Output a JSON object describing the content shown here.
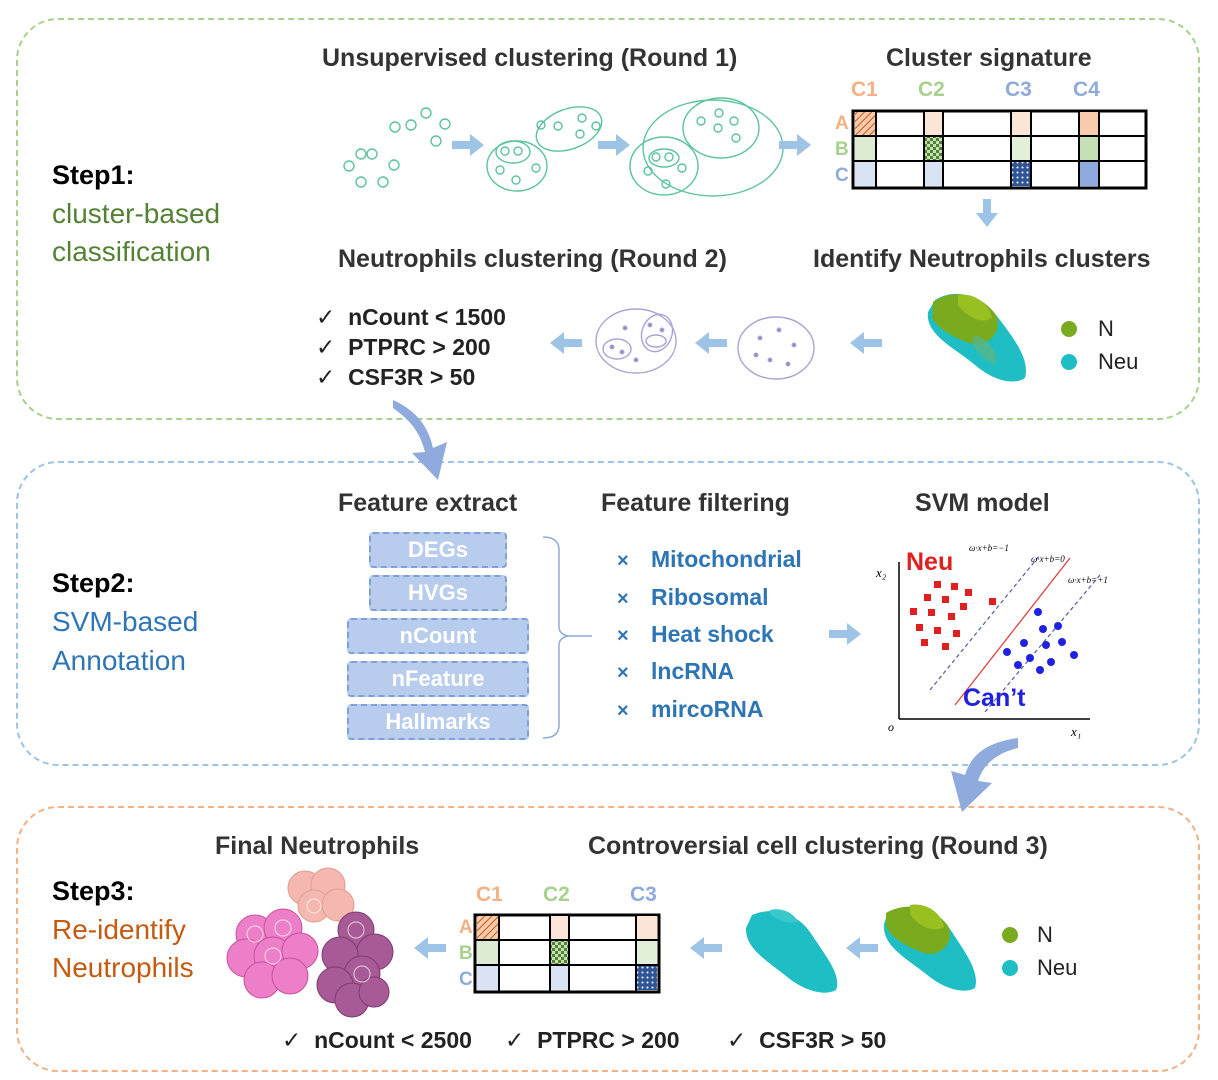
{
  "step1": {
    "label": "Step1:",
    "subtitle_line1": "cluster-based",
    "subtitle_line2": "classification",
    "color": "#548235",
    "border_color": "#a9d18e",
    "titles": {
      "unsupervised": "Unsupervised clustering (Round 1)",
      "signature": "Cluster signature",
      "neutrophils_round2": "Neutrophils clustering (Round 2)",
      "identify": "Identify Neutrophils clusters"
    },
    "matrix": {
      "columns": [
        "C1",
        "C2",
        "C3",
        "C4"
      ],
      "rows": [
        "A",
        "B",
        "C"
      ]
    },
    "criteria": [
      "nCount < 1500",
      "PTPRC > 200",
      "CSF3R > 50"
    ],
    "legend": [
      {
        "label": "N",
        "color": "#7aab1f"
      },
      {
        "label": "Neu",
        "color": "#1fbdc4"
      }
    ]
  },
  "step2": {
    "label": "Step2:",
    "subtitle_line1": "SVM-based",
    "subtitle_line2": "Annotation",
    "color": "#2e75b6",
    "border_color": "#9dc3e6",
    "titles": {
      "feature_extract": "Feature extract",
      "feature_filtering": "Feature filtering",
      "svm": "SVM model"
    },
    "features": [
      "DEGs",
      "HVGs",
      "nCount",
      "nFeature",
      "Hallmarks"
    ],
    "filters": [
      "Mitochondrial",
      "Ribosomal",
      "Heat shock",
      "lncRNA",
      "mircoRNA"
    ],
    "filter_mark": "×",
    "svm_plot": {
      "class_a": "Neu",
      "class_b": "Can’t",
      "x_axis": "x₁",
      "y_axis": "x₂",
      "origin": "o",
      "line_labels": [
        "ω·x+b=−1",
        "ω·x+b=0",
        "ω·x+b=+1"
      ]
    }
  },
  "step3": {
    "label": "Step3:",
    "subtitle_line1": "Re-identify",
    "subtitle_line2": "Neutrophils",
    "color": "#c55a11",
    "border_color": "#f4b183",
    "titles": {
      "final": "Final Neutrophils",
      "controversial": "Controversial cell clustering (Round 3)"
    },
    "matrix": {
      "columns": [
        "C1",
        "C2",
        "C3"
      ],
      "rows": [
        "A",
        "B",
        "C"
      ]
    },
    "criteria": [
      "nCount < 2500",
      "PTPRC > 200",
      "CSF3R > 50"
    ],
    "legend": [
      {
        "label": "N",
        "color": "#7aab1f"
      },
      {
        "label": "Neu",
        "color": "#1fbdc4"
      }
    ]
  },
  "check_mark": "✓",
  "colors": {
    "arrow": "#9dc3e6",
    "big_arrow": "#8faadc",
    "cluster_green": "#5cc49a",
    "cluster_purple": "#a9a3d6",
    "col_c1": "#f4b183",
    "col_c2": "#a9d18e",
    "col_c3": "#8faadc",
    "col_c4": "#8faadc"
  }
}
